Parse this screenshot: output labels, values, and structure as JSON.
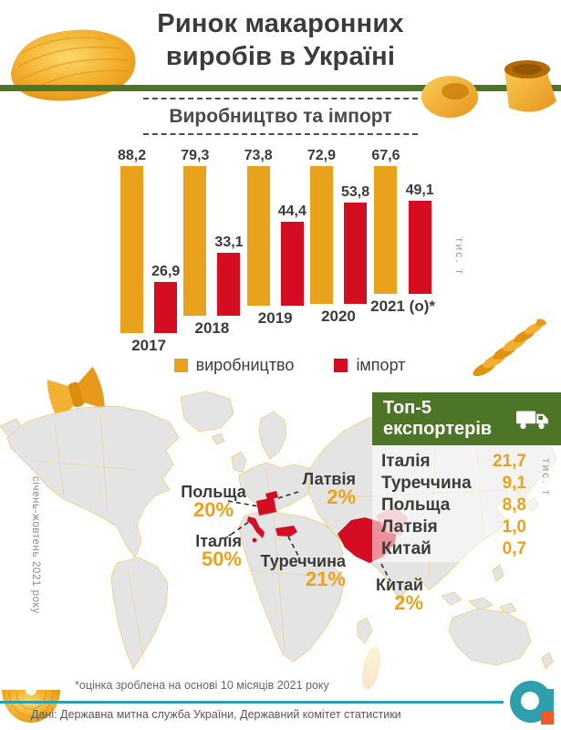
{
  "header": {
    "title_line1": "Ринок макаронних",
    "title_line2": "виробів в Україні"
  },
  "chart_data": [
    {
      "type": "bar",
      "title": "Виробництво та імпорт",
      "categories": [
        "2017",
        "2018",
        "2019",
        "2020",
        "2021 (о)*"
      ],
      "series": [
        {
          "name": "виробництво",
          "color": "#E9A21B",
          "values": [
            88.2,
            79.3,
            73.8,
            72.9,
            67.6
          ],
          "labels": [
            "88,2",
            "79,3",
            "73,8",
            "72,9",
            "67,6"
          ]
        },
        {
          "name": "імпорт",
          "color": "#D40D23",
          "values": [
            26.9,
            33.1,
            44.4,
            53.8,
            49.1
          ],
          "labels": [
            "26,9",
            "33,1",
            "44,4",
            "53,8",
            "49,1"
          ]
        }
      ],
      "ylabel": "тис. т",
      "ylim": [
        0,
        95
      ],
      "grid": false,
      "legend_position": "bottom"
    },
    {
      "type": "table",
      "title_line1": "Топ-5",
      "title_line2": "експортерів",
      "unit": "тис. т",
      "icon": "truck-icon",
      "rows": [
        {
          "country": "Італія",
          "value": "21,7"
        },
        {
          "country": "Туреччина",
          "value": "9,1"
        },
        {
          "country": "Польща",
          "value": "8,8"
        },
        {
          "country": "Латвія",
          "value": "1,0"
        },
        {
          "country": "Китай",
          "value": "0,7"
        }
      ]
    },
    {
      "type": "map",
      "period_note": "січень-жовтень 2021 року",
      "highlight_color": "#D40D23",
      "labels": [
        {
          "country": "Польща",
          "percent": "20%"
        },
        {
          "country": "Латвія",
          "percent": "2%"
        },
        {
          "country": "Італія",
          "percent": "50%"
        },
        {
          "country": "Туреччина",
          "percent": "21%"
        },
        {
          "country": "Китай",
          "percent": "2%"
        }
      ]
    }
  ],
  "footer": {
    "footnote": "*оцінка зроблена на основі 10 місяців 2021 року",
    "source": "Дані: Державна митна служба України, Державний комітет статистики"
  },
  "colors": {
    "production": "#E9A21B",
    "import": "#D40D23",
    "green_band": "#4C7527",
    "teal_line": "#2E9FAD",
    "logo_orange": "#F15A24",
    "map_land": "#E4E4E5",
    "map_border": "#F2CD71"
  },
  "decorations": [
    "conchiglie-pasta",
    "campanelle-pasta",
    "fusilli-pasta",
    "farfalle-pasta",
    "half-shell-pasta"
  ]
}
